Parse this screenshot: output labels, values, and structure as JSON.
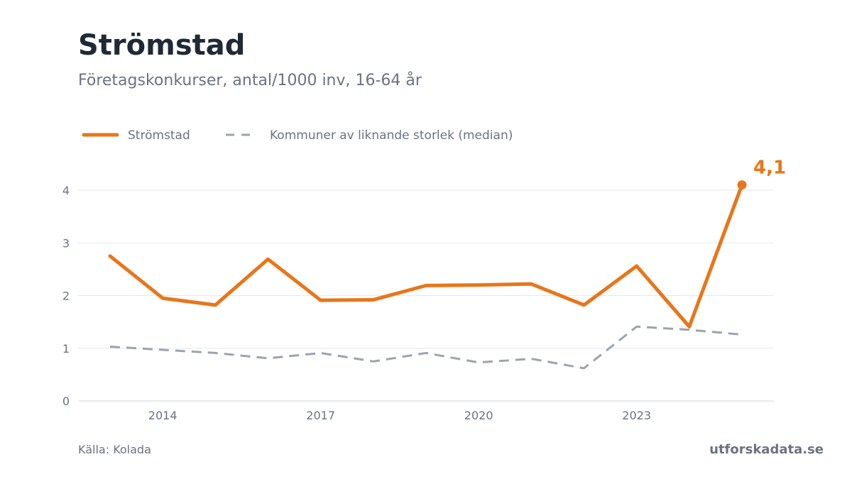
{
  "header": {
    "title": "Strömstad",
    "subtitle": "Företagskonkurser, antal/1000 inv, 16-64 år"
  },
  "footer": {
    "source": "Källa: Kolada",
    "brand": "utforskadata.se"
  },
  "colors": {
    "primary": "#e8761a",
    "median": "#9ca3af",
    "grid": "#e5e7eb",
    "axis_text": "#6b7280"
  },
  "chart_data": {
    "type": "line",
    "x": [
      2013,
      2014,
      2015,
      2016,
      2017,
      2018,
      2019,
      2020,
      2021,
      2022,
      2023,
      2024,
      2025
    ],
    "series": [
      {
        "name": "Strömstad",
        "style": "solid",
        "values": [
          2.75,
          1.95,
          1.82,
          2.69,
          1.91,
          1.92,
          2.19,
          2.2,
          2.22,
          1.82,
          2.56,
          1.41,
          4.1
        ]
      },
      {
        "name": "Kommuner av liknande storlek (median)",
        "style": "dashed",
        "values": [
          1.03,
          0.97,
          0.91,
          0.81,
          0.91,
          0.75,
          0.91,
          0.73,
          0.8,
          0.62,
          1.41,
          1.35,
          1.26
        ]
      }
    ],
    "xticks": [
      2014,
      2017,
      2020,
      2023
    ],
    "yticks": [
      0,
      1,
      2,
      3,
      4
    ],
    "ylim": [
      0,
      4
    ],
    "xlim": [
      2013,
      2025
    ],
    "grid": true,
    "legend": "top-left",
    "end_label": "4,1"
  }
}
